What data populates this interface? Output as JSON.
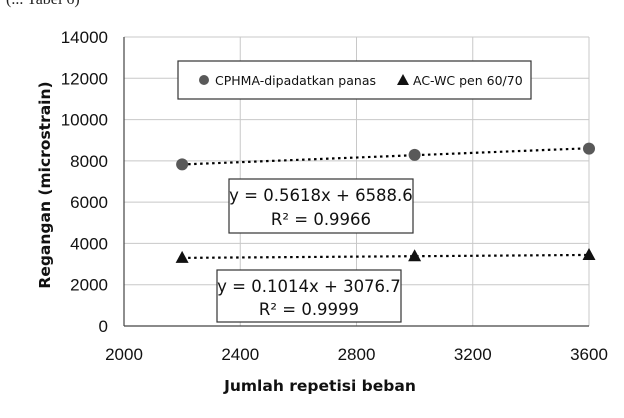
{
  "top_fragment": "(... Tabel 6)",
  "chart_data": {
    "type": "scatter",
    "xlabel": "Jumlah repetisi beban",
    "ylabel": "Regangan (microstrain)",
    "xlim": [
      2000,
      3600
    ],
    "ylim": [
      0,
      14000
    ],
    "x_ticks": [
      2000,
      2400,
      2800,
      3200,
      3600
    ],
    "y_ticks": [
      0,
      2000,
      4000,
      6000,
      8000,
      10000,
      12000,
      14000
    ],
    "grid": true,
    "legend_position": "top",
    "series": [
      {
        "name": "CPHMA-dipadatkan panas",
        "marker": "circle",
        "color": "#595959",
        "points": [
          {
            "x": 2200,
            "y": 7830
          },
          {
            "x": 3000,
            "y": 8290
          },
          {
            "x": 3600,
            "y": 8590
          }
        ],
        "trendline": {
          "slope": 0.5618,
          "intercept": 6588.6,
          "equation": "y = 0.5618x + 6588.6",
          "r2": "R² = 0.9966"
        }
      },
      {
        "name": "AC-WC pen 60/70",
        "marker": "triangle",
        "color": "#111111",
        "points": [
          {
            "x": 2200,
            "y": 3300
          },
          {
            "x": 3000,
            "y": 3380
          },
          {
            "x": 3600,
            "y": 3440
          }
        ],
        "trendline": {
          "slope": 0.1014,
          "intercept": 3076.7,
          "equation": "y = 0.1014x + 3076.7",
          "r2": "R² = 0.9999"
        }
      }
    ]
  }
}
